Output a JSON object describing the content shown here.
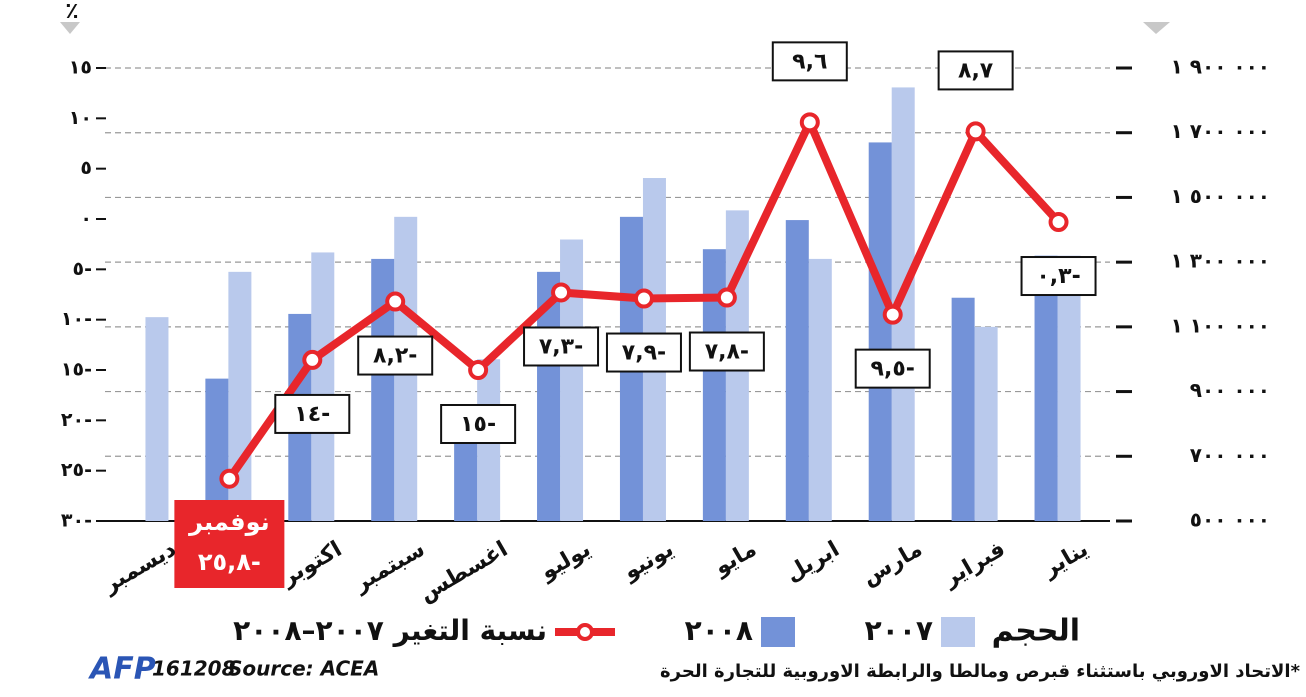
{
  "chart_data": {
    "type": "bar",
    "unit_label": "٪",
    "categories": [
      "يناير",
      "فبراير",
      "مارس",
      "ابريل",
      "مايو",
      "يونيو",
      "يوليو",
      "اغسطس",
      "سبتمبر",
      "اكتوبر",
      "نوفمبر",
      "ديسمبر"
    ],
    "series": [
      {
        "name": "٢٠٠٧",
        "color": "#b9c9ec",
        "axis": "y2",
        "values": [
          1320000,
          1100000,
          1840000,
          1310000,
          1460000,
          1560000,
          1370000,
          1000000,
          1440000,
          1330000,
          1270000,
          1130000
        ]
      },
      {
        "name": "٢٠٠٨",
        "color": "#7392d8",
        "axis": "y2",
        "values": [
          1320000,
          1190000,
          1670000,
          1430000,
          1340000,
          1440000,
          1270000,
          810000,
          1310000,
          1140000,
          940000,
          null
        ]
      },
      {
        "name": "نسبة التغير ٢٠٠٧–٢٠٠٨",
        "type": "line",
        "color": "#e8262b",
        "values": [
          -0.3,
          8.7,
          -9.5,
          9.6,
          -7.8,
          -7.9,
          -7.3,
          -15,
          -8.2,
          -14,
          -25.8,
          null
        ],
        "value_labels": [
          "٠,٣-",
          "٨,٧",
          "٩,٥-",
          "٩,٦",
          "٧,٨-",
          "٧,٩-",
          "٧,٣-",
          "١٥-",
          "٨,٢-",
          "١٤-",
          "٢٥,٨-",
          null
        ]
      }
    ],
    "ylim": [
      -30,
      15
    ],
    "yticks": [
      {
        "value": 15,
        "label": "١٥"
      },
      {
        "value": 10,
        "label": "١٠"
      },
      {
        "value": 5,
        "label": "٥"
      },
      {
        "value": 0,
        "label": "٠"
      },
      {
        "value": -5,
        "label": "٥-"
      },
      {
        "value": -10,
        "label": "١٠-"
      },
      {
        "value": -15,
        "label": "١٥-"
      },
      {
        "value": -20,
        "label": "٢٠-"
      },
      {
        "value": -25,
        "label": "٢٥-"
      },
      {
        "value": -30,
        "label": "٣٠-"
      }
    ],
    "y2lim": [
      500000,
      1900000
    ],
    "y2ticks": [
      {
        "value": 1900000,
        "label": "١ ٩٠٠ ٠٠٠"
      },
      {
        "value": 1700000,
        "label": "١ ٧٠٠ ٠٠٠"
      },
      {
        "value": 1500000,
        "label": "١ ٥٠٠ ٠٠٠"
      },
      {
        "value": 1300000,
        "label": "١ ٣٠٠ ٠٠٠"
      },
      {
        "value": 1100000,
        "label": "١ ١٠٠ ٠٠٠"
      },
      {
        "value": 900000,
        "label": "٩٠٠ ٠٠٠"
      },
      {
        "value": 700000,
        "label": "٧٠٠ ٠٠٠"
      },
      {
        "value": 500000,
        "label": "٥٠٠ ٠٠٠"
      }
    ],
    "grid": true,
    "legend_title": "الحجم",
    "agency": "AFP",
    "code": "161208",
    "source": "Source: ACEA",
    "footnote": "*الاتحاد الاوروبي باستثناء قبرص ومالطا والرابطة الاوروبية للتجارة الحرة"
  }
}
